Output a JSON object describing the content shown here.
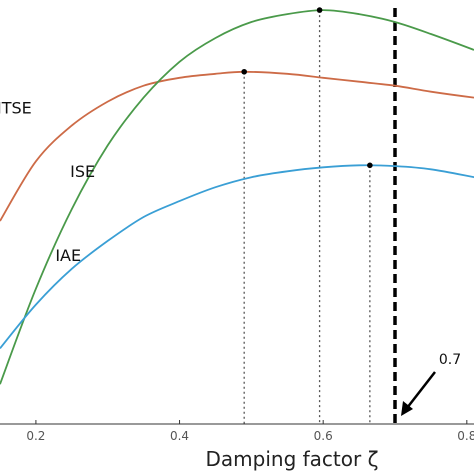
{
  "chart_data": {
    "type": "line",
    "xlabel": "Damping factor ζ",
    "xlim": [
      0.15,
      0.81
    ],
    "xticks": [
      "0.2",
      "0.4",
      "0.6",
      "0.8"
    ],
    "xtick_values": [
      0.2,
      0.4,
      0.6,
      0.8
    ],
    "ylim": [
      0,
      1
    ],
    "grid": false,
    "series": [
      {
        "name": "ITSE",
        "color": "#cd6b47",
        "x": [
          0.15,
          0.2,
          0.25,
          0.3,
          0.35,
          0.4,
          0.45,
          0.49,
          0.55,
          0.6,
          0.65,
          0.7,
          0.75,
          0.81
        ],
        "y": [
          0.49,
          0.64,
          0.73,
          0.79,
          0.83,
          0.85,
          0.86,
          0.865,
          0.86,
          0.85,
          0.84,
          0.83,
          0.815,
          0.8
        ],
        "peak": [
          0.49,
          0.865
        ]
      },
      {
        "name": "ISE",
        "color": "#4a9a4a",
        "x": [
          0.15,
          0.2,
          0.25,
          0.3,
          0.35,
          0.4,
          0.45,
          0.5,
          0.55,
          0.6,
          0.65,
          0.7,
          0.75,
          0.81
        ],
        "y": [
          0.08,
          0.32,
          0.52,
          0.68,
          0.8,
          0.89,
          0.95,
          0.99,
          1.01,
          1.02,
          1.01,
          0.99,
          0.96,
          0.92
        ],
        "peak": [
          0.595,
          1.02
        ]
      },
      {
        "name": "IAE",
        "color": "#3a9fd5",
        "x": [
          0.15,
          0.2,
          0.25,
          0.3,
          0.35,
          0.4,
          0.45,
          0.5,
          0.55,
          0.6,
          0.65,
          0.7,
          0.75,
          0.81
        ],
        "y": [
          0.17,
          0.28,
          0.37,
          0.44,
          0.5,
          0.54,
          0.575,
          0.6,
          0.615,
          0.625,
          0.63,
          0.628,
          0.62,
          0.6
        ],
        "peak": [
          0.665,
          0.63
        ]
      }
    ],
    "label_positions": {
      "ITSE": [
        0.17,
        0.76
      ],
      "ISE": [
        0.265,
        0.6
      ],
      "IAE": [
        0.245,
        0.39
      ]
    },
    "reference_line": {
      "x": 0.7,
      "style": "thick dashed",
      "color": "#000000"
    },
    "annotation": {
      "text": "0.7",
      "arrow_to": 0.7
    }
  }
}
